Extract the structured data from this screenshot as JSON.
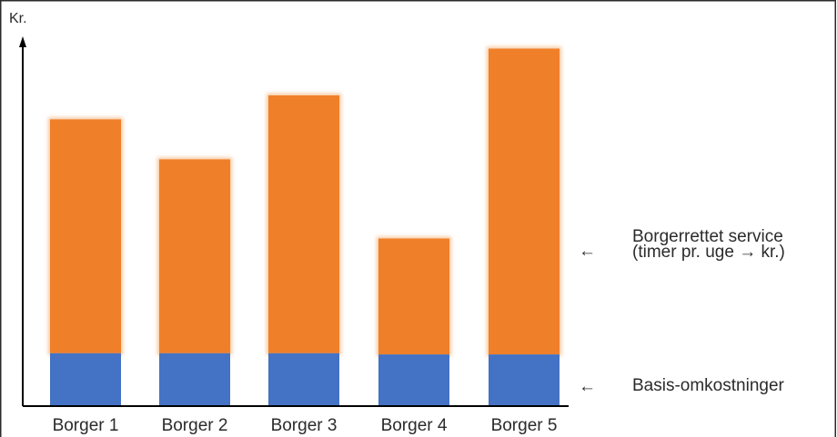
{
  "chart_data": {
    "type": "bar",
    "stacked": true,
    "ylabel": "Kr.",
    "categories": [
      "Borger 1",
      "Borger 2",
      "Borger 3",
      "Borger 4",
      "Borger 5"
    ],
    "series": [
      {
        "key": "basis",
        "values": [
          13,
          13,
          13,
          12.7,
          12.7
        ]
      },
      {
        "key": "service",
        "values": [
          58.5,
          48.5,
          64.5,
          29,
          76.5
        ]
      }
    ],
    "ylim": [
      0,
      90
    ],
    "colors": {
      "basis": "#4472c4",
      "service": "#f07f2a",
      "axis": "#000000",
      "frame": "#2b2b2b"
    },
    "legend": {
      "service_line1": "Borgerrettet service",
      "service_line2": "(timer pr. uge → kr.)",
      "basis": "Basis-omkostninger",
      "arrow": "←"
    }
  }
}
